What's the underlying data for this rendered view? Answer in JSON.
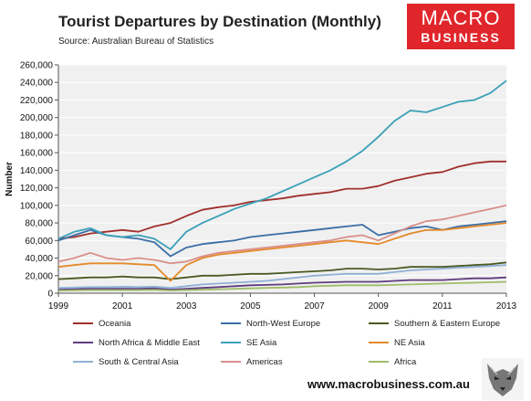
{
  "header": {
    "title": "Tourist Departures by Destination (Monthly)",
    "source": "Source: Australian Bureau of Statistics"
  },
  "logo": {
    "line1": "MACRO",
    "line2": "BUSINESS"
  },
  "footer": {
    "website": "www.macrobusiness.com.au"
  },
  "colors": {
    "plot_background": "#f0f0f0",
    "logo_red": "#e0262b"
  },
  "chart_data": {
    "type": "line",
    "title": "Tourist Departures by Destination (Monthly)",
    "ylabel": "Number",
    "xlabel": "",
    "xlim": [
      1999,
      2013
    ],
    "ylim": [
      0,
      260000
    ],
    "x_tick_labels": [
      "1999",
      "2001",
      "2003",
      "2005",
      "2007",
      "2009",
      "2011",
      "2013"
    ],
    "y_tick_labels": [
      "0",
      "20,000",
      "40,000",
      "60,000",
      "80,000",
      "100,000",
      "120,000",
      "140,000",
      "160,000",
      "180,000",
      "200,000",
      "220,000",
      "240,000",
      "260,000"
    ],
    "y_ticks": [
      0,
      20000,
      40000,
      60000,
      80000,
      100000,
      120000,
      140000,
      160000,
      180000,
      200000,
      220000,
      240000,
      260000
    ],
    "grid": "horizontal",
    "legend_position": "bottom",
    "x": [
      1999.0,
      1999.5,
      2000.0,
      2000.5,
      2001.0,
      2001.5,
      2002.0,
      2002.5,
      2003.0,
      2003.5,
      2004.0,
      2004.5,
      2005.0,
      2005.5,
      2006.0,
      2006.5,
      2007.0,
      2007.5,
      2008.0,
      2008.5,
      2009.0,
      2009.5,
      2010.0,
      2010.5,
      2011.0,
      2011.5,
      2012.0,
      2012.5,
      2013.0
    ],
    "series": [
      {
        "name": "Oceania",
        "color": "#a0302c",
        "values": [
          62000,
          64000,
          68000,
          70000,
          72000,
          70000,
          76000,
          80000,
          88000,
          95000,
          98000,
          100000,
          104000,
          106000,
          108000,
          111000,
          113000,
          115000,
          119000,
          119000,
          122000,
          128000,
          132000,
          136000,
          138000,
          144000,
          148000,
          150000,
          150000
        ]
      },
      {
        "name": "North-West Europe",
        "color": "#3b6ea5",
        "values": [
          60000,
          66000,
          72000,
          66000,
          64000,
          62000,
          58000,
          42000,
          52000,
          56000,
          58000,
          60000,
          64000,
          66000,
          68000,
          70000,
          72000,
          74000,
          76000,
          78000,
          66000,
          70000,
          74000,
          76000,
          72000,
          76000,
          78000,
          80000,
          82000
        ]
      },
      {
        "name": "Southern & Eastern Europe",
        "color": "#4a5a22",
        "values": [
          16000,
          17000,
          18000,
          18000,
          19000,
          18000,
          18000,
          16000,
          18000,
          20000,
          20000,
          21000,
          22000,
          22000,
          23000,
          24000,
          25000,
          26000,
          28000,
          28000,
          27000,
          28000,
          30000,
          30000,
          30000,
          31000,
          32000,
          33000,
          35000
        ]
      },
      {
        "name": "North Africa & Middle East",
        "color": "#5e3c7e",
        "values": [
          4000,
          4500,
          5000,
          5000,
          5000,
          5000,
          5500,
          4000,
          5000,
          6000,
          7000,
          8000,
          9000,
          9500,
          10000,
          11000,
          12000,
          12500,
          13000,
          13000,
          13000,
          14000,
          15000,
          15000,
          15000,
          16000,
          17000,
          17000,
          18000
        ]
      },
      {
        "name": "SE Asia",
        "color": "#3aa0b8",
        "values": [
          62000,
          70000,
          74000,
          66000,
          64000,
          66000,
          62000,
          50000,
          70000,
          80000,
          88000,
          96000,
          102000,
          108000,
          116000,
          124000,
          132000,
          140000,
          150000,
          162000,
          178000,
          196000,
          208000,
          206000,
          212000,
          218000,
          220000,
          228000,
          242000
        ]
      },
      {
        "name": "NE Asia",
        "color": "#e48a2c",
        "values": [
          30000,
          32000,
          34000,
          34000,
          34000,
          33000,
          32000,
          14000,
          32000,
          40000,
          44000,
          46000,
          48000,
          50000,
          52000,
          54000,
          56000,
          58000,
          60000,
          58000,
          56000,
          62000,
          68000,
          72000,
          72000,
          74000,
          76000,
          78000,
          80000
        ]
      },
      {
        "name": "South & Central Asia",
        "color": "#8fb1d6",
        "values": [
          6000,
          6500,
          7000,
          7000,
          7500,
          7000,
          7500,
          6000,
          8000,
          10000,
          11000,
          12000,
          13000,
          14000,
          16000,
          18000,
          20000,
          21000,
          22000,
          22000,
          22000,
          24000,
          26000,
          27000,
          28000,
          29000,
          30000,
          31000,
          32000
        ]
      },
      {
        "name": "Americas",
        "color": "#d98f8a",
        "values": [
          36000,
          40000,
          46000,
          40000,
          38000,
          40000,
          38000,
          34000,
          36000,
          42000,
          46000,
          48000,
          50000,
          52000,
          54000,
          56000,
          58000,
          60000,
          64000,
          66000,
          60000,
          68000,
          76000,
          82000,
          84000,
          88000,
          92000,
          96000,
          100000
        ]
      },
      {
        "name": "Africa",
        "color": "#9fbc6a",
        "values": [
          3000,
          3200,
          3500,
          3500,
          3500,
          3500,
          3800,
          3000,
          3500,
          4000,
          4500,
          5000,
          5500,
          6000,
          6500,
          7000,
          8000,
          8500,
          9000,
          9000,
          9000,
          9500,
          10000,
          10500,
          11000,
          11500,
          12000,
          12500,
          13000
        ]
      }
    ]
  }
}
